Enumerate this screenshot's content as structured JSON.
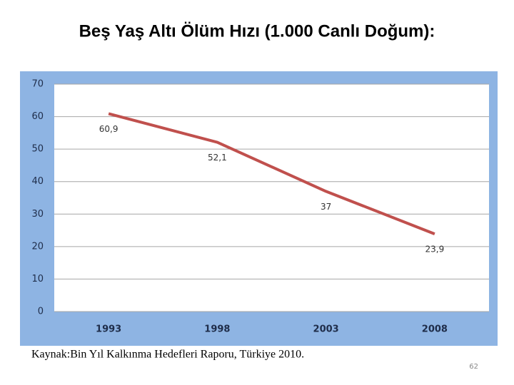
{
  "chart_data": {
    "type": "line",
    "title": "Beş Yaş Altı Ölüm Hızı (1.000 Canlı Doğum):",
    "categories": [
      "1993",
      "1998",
      "2003",
      "2008"
    ],
    "values": [
      60.9,
      52.1,
      37,
      23.9
    ],
    "value_labels": [
      "60,9",
      "52,1",
      "37",
      "23,9"
    ],
    "color": "#c0504d",
    "ylim": [
      0,
      70
    ],
    "yticks": [
      0,
      10,
      20,
      30,
      40,
      50,
      60,
      70
    ],
    "grid": true
  },
  "source": "Kaynak:Bin Yıl Kalkınma Hedefleri Raporu, Türkiye 2010.",
  "page_number": "62"
}
